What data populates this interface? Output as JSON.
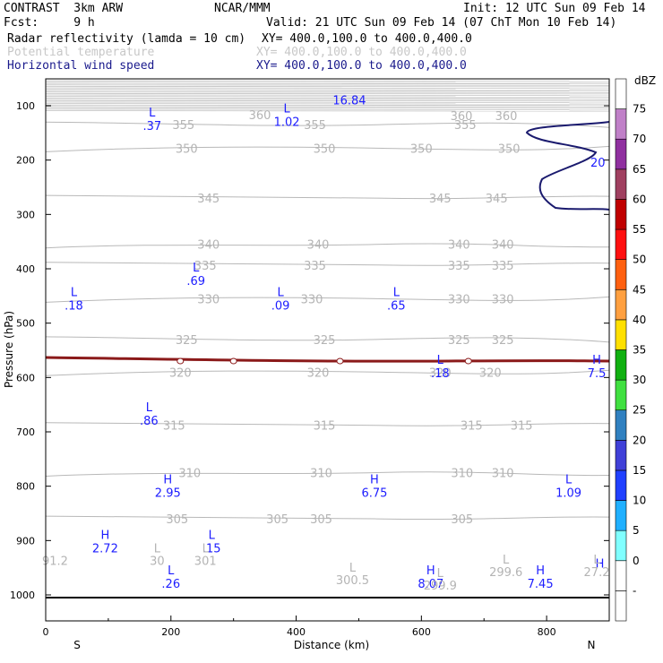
{
  "header": {
    "model": "CONTRAST  3km ARW",
    "center": "NCAR/MMM",
    "init": "Init: 12 UTC Sun 09 Feb 14",
    "fcst": "Fcst:     9 h",
    "valid": "Valid: 21 UTC Sun 09 Feb 14 (07 ChT Mon 10 Feb 14)",
    "fields": [
      {
        "name": "Radar reflectivity (lamda = 10 cm)",
        "xy": "XY= 400.0,100.0 to 400.0,400.0",
        "color": "#000000"
      },
      {
        "name": "Potential temperature",
        "xy": "XY= 400.0,100.0 to 400.0,400.0",
        "color": "#c8c8c8"
      },
      {
        "name": "Horizontal wind speed",
        "xy": "XY= 400.0,100.0 to 400.0,400.0",
        "color": "#1a1a8c"
      }
    ]
  },
  "chart_data": {
    "type": "cross-section",
    "xlabel": "Distance (km)",
    "ylabel": "Pressure (hPa)",
    "xlim": [
      0,
      900
    ],
    "ylim": [
      1050,
      50
    ],
    "x_ticks": [
      "0",
      "200",
      "400",
      "600",
      "800"
    ],
    "x_tick_values": [
      0,
      200,
      400,
      600,
      800
    ],
    "y_ticks": [
      "100",
      "200",
      "300",
      "400",
      "500",
      "600",
      "700",
      "800",
      "900",
      "1000"
    ],
    "y_tick_values": [
      100,
      200,
      300,
      400,
      500,
      600,
      700,
      800,
      900,
      1000
    ],
    "x_end_labels": {
      "left": "S",
      "right": "N"
    },
    "colorbar": {
      "units": "dBZ",
      "levels": [
        "-",
        "0",
        "5",
        "10",
        "15",
        "20",
        "25",
        "30",
        "35",
        "40",
        "45",
        "50",
        "55",
        "60",
        "65",
        "70",
        "75"
      ],
      "colors": [
        "#ffffff",
        "#ffffff",
        "#80ffff",
        "#20b0ff",
        "#2040ff",
        "#4040d8",
        "#3080c0",
        "#40e040",
        "#10b010",
        "#ffe000",
        "#ffa040",
        "#ff6010",
        "#ff1010",
        "#c00000",
        "#a04060",
        "#9030a0",
        "#c080c8",
        "#ffffff"
      ]
    },
    "theta_contours": [
      {
        "value": "355",
        "pressure": 135,
        "labels_x": [
          220,
          430,
          670
        ]
      },
      {
        "value": "350",
        "pressure": 178,
        "labels_x": [
          225,
          445,
          600,
          740
        ]
      },
      {
        "value": "345",
        "pressure": 270,
        "labels_x": [
          260,
          630,
          720
        ]
      },
      {
        "value": "340",
        "pressure": 355,
        "labels_x": [
          260,
          435,
          660,
          730
        ]
      },
      {
        "value": "335",
        "pressure": 393,
        "labels_x": [
          255,
          430,
          660,
          730
        ]
      },
      {
        "value": "330",
        "pressure": 455,
        "labels_x": [
          260,
          425,
          660,
          730
        ]
      },
      {
        "value": "325",
        "pressure": 530,
        "labels_x": [
          225,
          445,
          660,
          730
        ]
      },
      {
        "value": "320",
        "pressure": 590,
        "labels_x": [
          215,
          435,
          630,
          710
        ]
      },
      {
        "value": "315",
        "pressure": 688,
        "labels_x": [
          205,
          445,
          680,
          760
        ]
      },
      {
        "value": "310",
        "pressure": 775,
        "labels_x": [
          230,
          440,
          665,
          730
        ]
      },
      {
        "value": "305",
        "pressure": 860,
        "labels_x": [
          210,
          370,
          440,
          665
        ]
      }
    ],
    "theta_extrema": [
      {
        "type": "",
        "value": "91.2",
        "x": 15,
        "p": 945
      },
      {
        "type": "L",
        "value": "30",
        "x": 178,
        "p": 945
      },
      {
        "type": "L",
        "value": "301",
        "x": 255,
        "p": 945
      },
      {
        "type": "L",
        "value": "300.5",
        "x": 490,
        "p": 980
      },
      {
        "type": "L",
        "value": "299.9",
        "x": 630,
        "p": 990
      },
      {
        "type": "L",
        "value": "299.6",
        "x": 735,
        "p": 965
      },
      {
        "type": "L",
        "value": "27.2",
        "x": 880,
        "p": 965
      }
    ],
    "wind_extrema": [
      {
        "type": "",
        "value": "16.84",
        "x": 485,
        "p": 73
      },
      {
        "type": "L",
        "value": ".37",
        "x": 170,
        "p": 120
      },
      {
        "type": "L",
        "value": "1.02",
        "x": 385,
        "p": 112
      },
      {
        "type": "L",
        "value": ".18",
        "x": 45,
        "p": 450
      },
      {
        "type": "L",
        "value": ".69",
        "x": 240,
        "p": 405
      },
      {
        "type": "L",
        "value": ".09",
        "x": 375,
        "p": 450
      },
      {
        "type": "L",
        "value": ".65",
        "x": 560,
        "p": 450
      },
      {
        "type": "L",
        "value": ".18",
        "x": 630,
        "p": 575
      },
      {
        "type": "H",
        "value": "7.5",
        "x": 880,
        "p": 575
      },
      {
        "type": "L",
        "value": ".86",
        "x": 165,
        "p": 662
      },
      {
        "type": "H",
        "value": "2.95",
        "x": 195,
        "p": 795
      },
      {
        "type": "H",
        "value": "6.75",
        "x": 525,
        "p": 795
      },
      {
        "type": "L",
        "value": "1.09",
        "x": 835,
        "p": 795
      },
      {
        "type": "H",
        "value": "2.72",
        "x": 95,
        "p": 897
      },
      {
        "type": "L",
        "value": ".15",
        "x": 265,
        "p": 897
      },
      {
        "type": "L",
        "value": ".26",
        "x": 200,
        "p": 962
      },
      {
        "type": "H",
        "value": "8.07",
        "x": 615,
        "p": 962
      },
      {
        "type": "H",
        "value": "7.45",
        "x": 790,
        "p": 962
      },
      {
        "type": "H",
        "value": "",
        "x": 885,
        "p": 950
      }
    ],
    "wind_contour_label": {
      "value": "20",
      "x": 870,
      "p": 212
    },
    "reflectivity_band": {
      "pressure": 578,
      "color": "#8b1a1a"
    }
  }
}
